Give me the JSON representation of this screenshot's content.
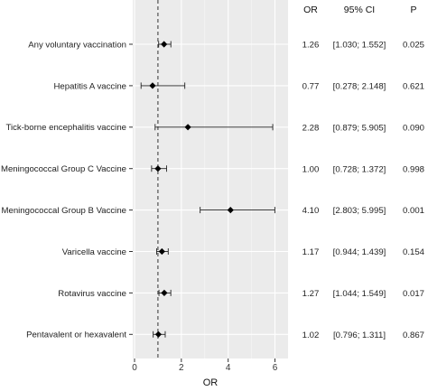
{
  "chart_data": {
    "type": "forest",
    "xlabel": "OR",
    "xlim": [
      0,
      6.3
    ],
    "x_ticks": [
      "0",
      "2",
      "4",
      "6"
    ],
    "reference_line": 1,
    "grid": true,
    "columns": [
      "OR",
      "95% CI",
      "P"
    ],
    "rows": [
      {
        "label": "Any voluntary vaccination",
        "or": 1.26,
        "lo": 1.03,
        "hi": 1.552,
        "or_text": "1.26",
        "ci_text": "[1.030; 1.552]",
        "p_text": "0.025"
      },
      {
        "label": "Hepatitis A vaccine",
        "or": 0.77,
        "lo": 0.278,
        "hi": 2.148,
        "or_text": "0.77",
        "ci_text": "[0.278; 2.148]",
        "p_text": "0.621"
      },
      {
        "label": "Tick-borne encephalitis vaccine",
        "or": 2.28,
        "lo": 0.879,
        "hi": 5.905,
        "or_text": "2.28",
        "ci_text": "[0.879; 5.905]",
        "p_text": "0.090"
      },
      {
        "label": "Meningococcal Group C Vaccine",
        "or": 1.0,
        "lo": 0.728,
        "hi": 1.372,
        "or_text": "1.00",
        "ci_text": "[0.728; 1.372]",
        "p_text": "0.998"
      },
      {
        "label": "Meningococcal Group B Vaccine",
        "or": 4.1,
        "lo": 2.803,
        "hi": 5.995,
        "or_text": "4.10",
        "ci_text": "[2.803; 5.995]",
        "p_text": "0.001"
      },
      {
        "label": "Varicella vaccine",
        "or": 1.17,
        "lo": 0.944,
        "hi": 1.439,
        "or_text": "1.17",
        "ci_text": "[0.944; 1.439]",
        "p_text": "0.154"
      },
      {
        "label": "Rotavirus vaccine",
        "or": 1.27,
        "lo": 1.044,
        "hi": 1.549,
        "or_text": "1.27",
        "ci_text": "[1.044; 1.549]",
        "p_text": "0.017"
      },
      {
        "label": "Pentavalent or hexavalent",
        "or": 1.02,
        "lo": 0.796,
        "hi": 1.311,
        "or_text": "1.02",
        "ci_text": "[0.796; 1.311]",
        "p_text": "0.867"
      }
    ]
  }
}
